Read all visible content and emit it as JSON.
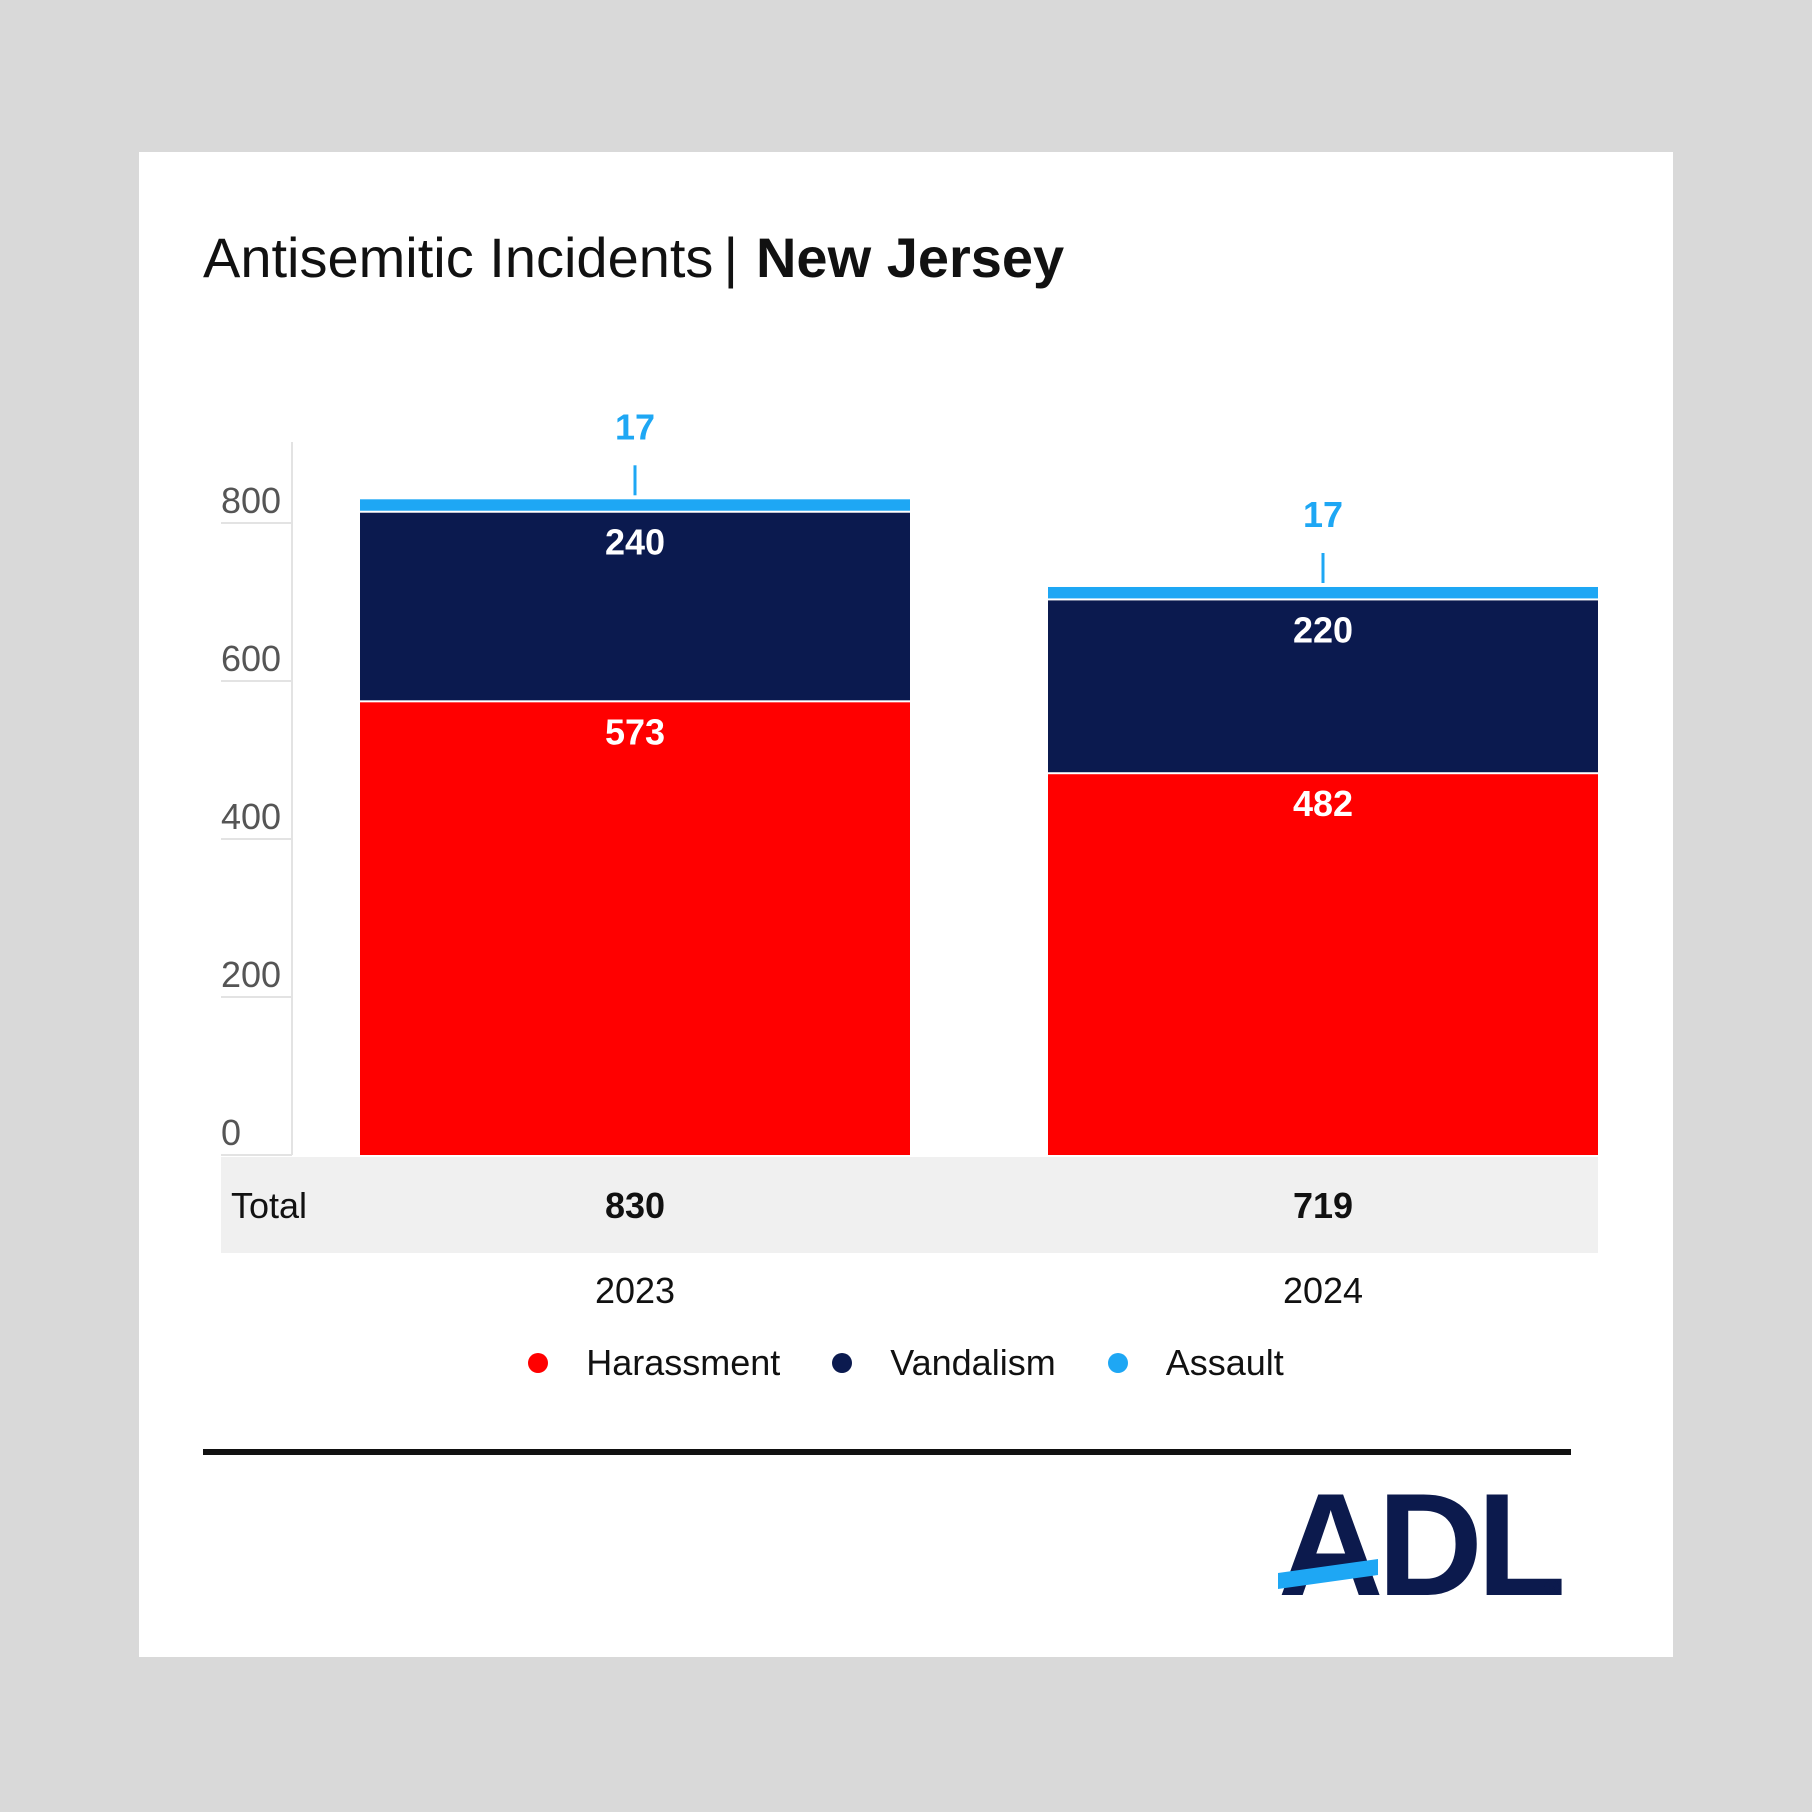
{
  "title": {
    "main": "Antisemitic Incidents",
    "separator": "|",
    "region": "New Jersey"
  },
  "colors": {
    "harassment": "#ff0000",
    "vandalism": "#0b1a4f",
    "assault": "#1ea7f4",
    "background": "#d9d9d9",
    "total_band": "#f0f0f0",
    "logo_navy": "#0c1a4d",
    "logo_accent": "#1ea7f4"
  },
  "chart_data": {
    "type": "bar",
    "stacked": true,
    "categories": [
      "2023",
      "2024"
    ],
    "series": [
      {
        "name": "Harassment",
        "values": [
          573,
          482
        ],
        "color": "#ff0000"
      },
      {
        "name": "Vandalism",
        "values": [
          240,
          220
        ],
        "color": "#0b1a4f"
      },
      {
        "name": "Assault",
        "values": [
          17,
          17
        ],
        "color": "#1ea7f4"
      }
    ],
    "totals": {
      "label": "Total",
      "values": [
        830,
        719
      ]
    },
    "y_ticks": [
      0,
      200,
      400,
      600,
      800
    ],
    "ylim": [
      0,
      900
    ],
    "xlabel": "",
    "ylabel": "",
    "grid": false,
    "legend_position": "bottom-center"
  },
  "logo": {
    "text": "ADL",
    "mark": "®"
  }
}
